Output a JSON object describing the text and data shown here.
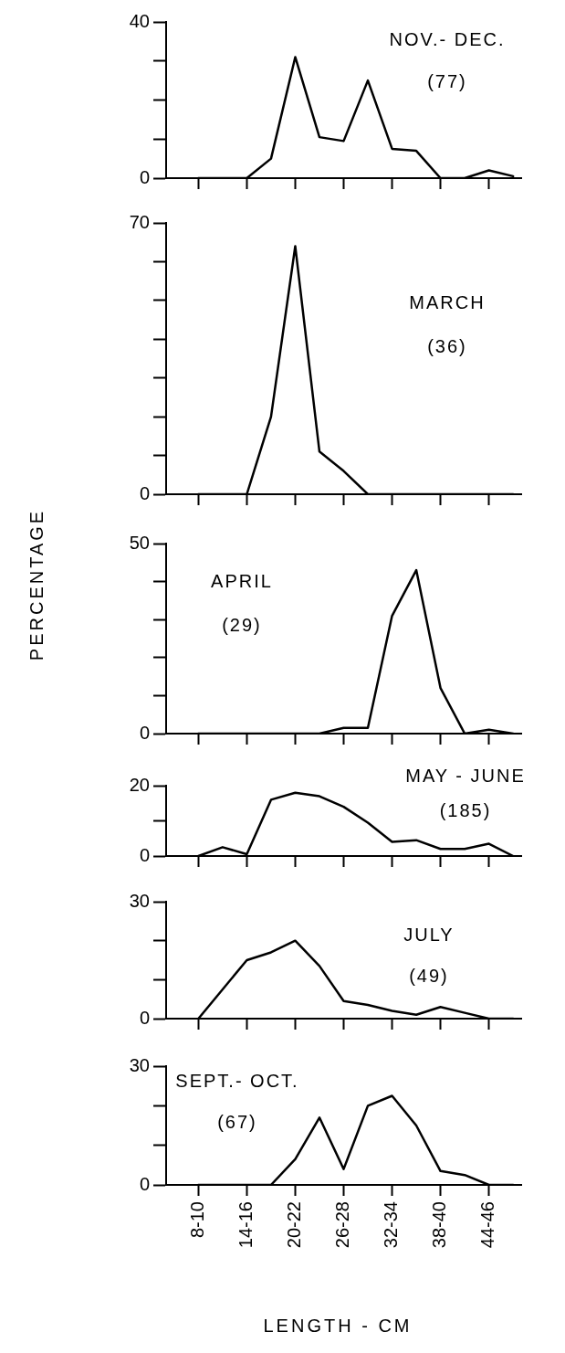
{
  "chart_data": [
    {
      "type": "line",
      "annotations": [
        "NOV.- DEC.",
        "(77)"
      ],
      "categories": [
        null,
        null,
        null,
        null,
        null,
        null,
        null,
        null,
        null,
        null,
        null,
        null,
        null,
        null
      ],
      "series": [
        {
          "color": "#000000",
          "values": [
            0,
            0,
            0,
            5,
            31,
            10.5,
            9.5,
            25,
            7.5,
            7,
            0,
            0,
            2,
            0.5
          ]
        }
      ],
      "ylim": [
        0,
        40
      ],
      "yticks": [
        0,
        {
          "value": 10,
          "label": null
        },
        {
          "value": 20,
          "label": null
        },
        {
          "value": 30,
          "label": null
        },
        40
      ],
      "tick_labels": "y",
      "marker": "none"
    },
    {
      "type": "line",
      "annotations": [
        "MARCH",
        "(36)"
      ],
      "categories": [
        null,
        null,
        null,
        null,
        null,
        null,
        null,
        null,
        null,
        null,
        null,
        null,
        null,
        null
      ],
      "series": [
        {
          "color": "#000000",
          "values": [
            0,
            0,
            0,
            20,
            64,
            11,
            6,
            0,
            0,
            0,
            0,
            0,
            0,
            0
          ]
        }
      ],
      "ylim": [
        0,
        70
      ],
      "yticks": [
        0,
        {
          "value": 10,
          "label": null
        },
        {
          "value": 20,
          "label": null
        },
        {
          "value": 30,
          "label": null
        },
        {
          "value": 40,
          "label": null
        },
        {
          "value": 50,
          "label": null
        },
        {
          "value": 60,
          "label": null
        },
        70
      ],
      "tick_labels": "y",
      "marker": "none"
    },
    {
      "type": "line",
      "ylabel": "PERCENTAGE",
      "annotations": [
        "APRIL",
        "(29)"
      ],
      "categories": [
        null,
        null,
        null,
        null,
        null,
        null,
        null,
        null,
        null,
        null,
        null,
        null,
        null,
        null
      ],
      "series": [
        {
          "color": "#000000",
          "values": [
            0,
            0,
            0,
            0,
            0,
            0,
            1.5,
            1.5,
            31,
            43,
            12,
            0,
            1,
            0
          ]
        }
      ],
      "ylim": [
        0,
        50
      ],
      "yticks": [
        0,
        {
          "value": 10,
          "label": null
        },
        {
          "value": 20,
          "label": null
        },
        {
          "value": 30,
          "label": null
        },
        {
          "value": 40,
          "label": null
        },
        50
      ],
      "tick_labels": "y",
      "marker": "none"
    },
    {
      "type": "line",
      "annotations": [
        "MAY - JUNE",
        "(185)"
      ],
      "categories": [
        null,
        null,
        null,
        null,
        null,
        null,
        null,
        null,
        null,
        null,
        null,
        null,
        null,
        null
      ],
      "series": [
        {
          "color": "#000000",
          "values": [
            0,
            2.5,
            0.5,
            16,
            18,
            17,
            14,
            9.5,
            4,
            4.5,
            2,
            2,
            3.5,
            0
          ]
        }
      ],
      "ylim": [
        0,
        20
      ],
      "yticks": [
        0,
        {
          "value": 10,
          "label": null
        },
        20
      ],
      "tick_labels": "y",
      "marker": "none"
    },
    {
      "type": "line",
      "annotations": [
        "JULY",
        "(49)"
      ],
      "categories": [
        null,
        null,
        null,
        null,
        null,
        null,
        null,
        null,
        null,
        null,
        null,
        null,
        null,
        null
      ],
      "series": [
        {
          "color": "#000000",
          "values": [
            0,
            7.5,
            15,
            17,
            20,
            13.5,
            4.5,
            3.5,
            2,
            1,
            3,
            1.5,
            0,
            0
          ]
        }
      ],
      "ylim": [
        0,
        30
      ],
      "yticks": [
        0,
        {
          "value": 10,
          "label": null
        },
        {
          "value": 20,
          "label": null
        },
        30
      ],
      "tick_labels": "y",
      "marker": "none"
    },
    {
      "type": "line",
      "xlabel": "LENGTH - CM",
      "annotations": [
        "SEPT.- OCT.",
        "(67)"
      ],
      "categories": [
        "8-10",
        null,
        "14-16",
        null,
        "20-22",
        null,
        "26-28",
        null,
        "32-34",
        null,
        "38-40",
        null,
        "44-46",
        null
      ],
      "series": [
        {
          "color": "#000000",
          "values": [
            0,
            0,
            0,
            0,
            6.5,
            17,
            4,
            20,
            22.5,
            15,
            3.5,
            2.5,
            0,
            0
          ]
        }
      ],
      "ylim": [
        0,
        30
      ],
      "yticks": [
        0,
        {
          "value": 10,
          "label": null
        },
        {
          "value": 20,
          "label": null
        },
        30
      ],
      "marker": "none"
    }
  ]
}
